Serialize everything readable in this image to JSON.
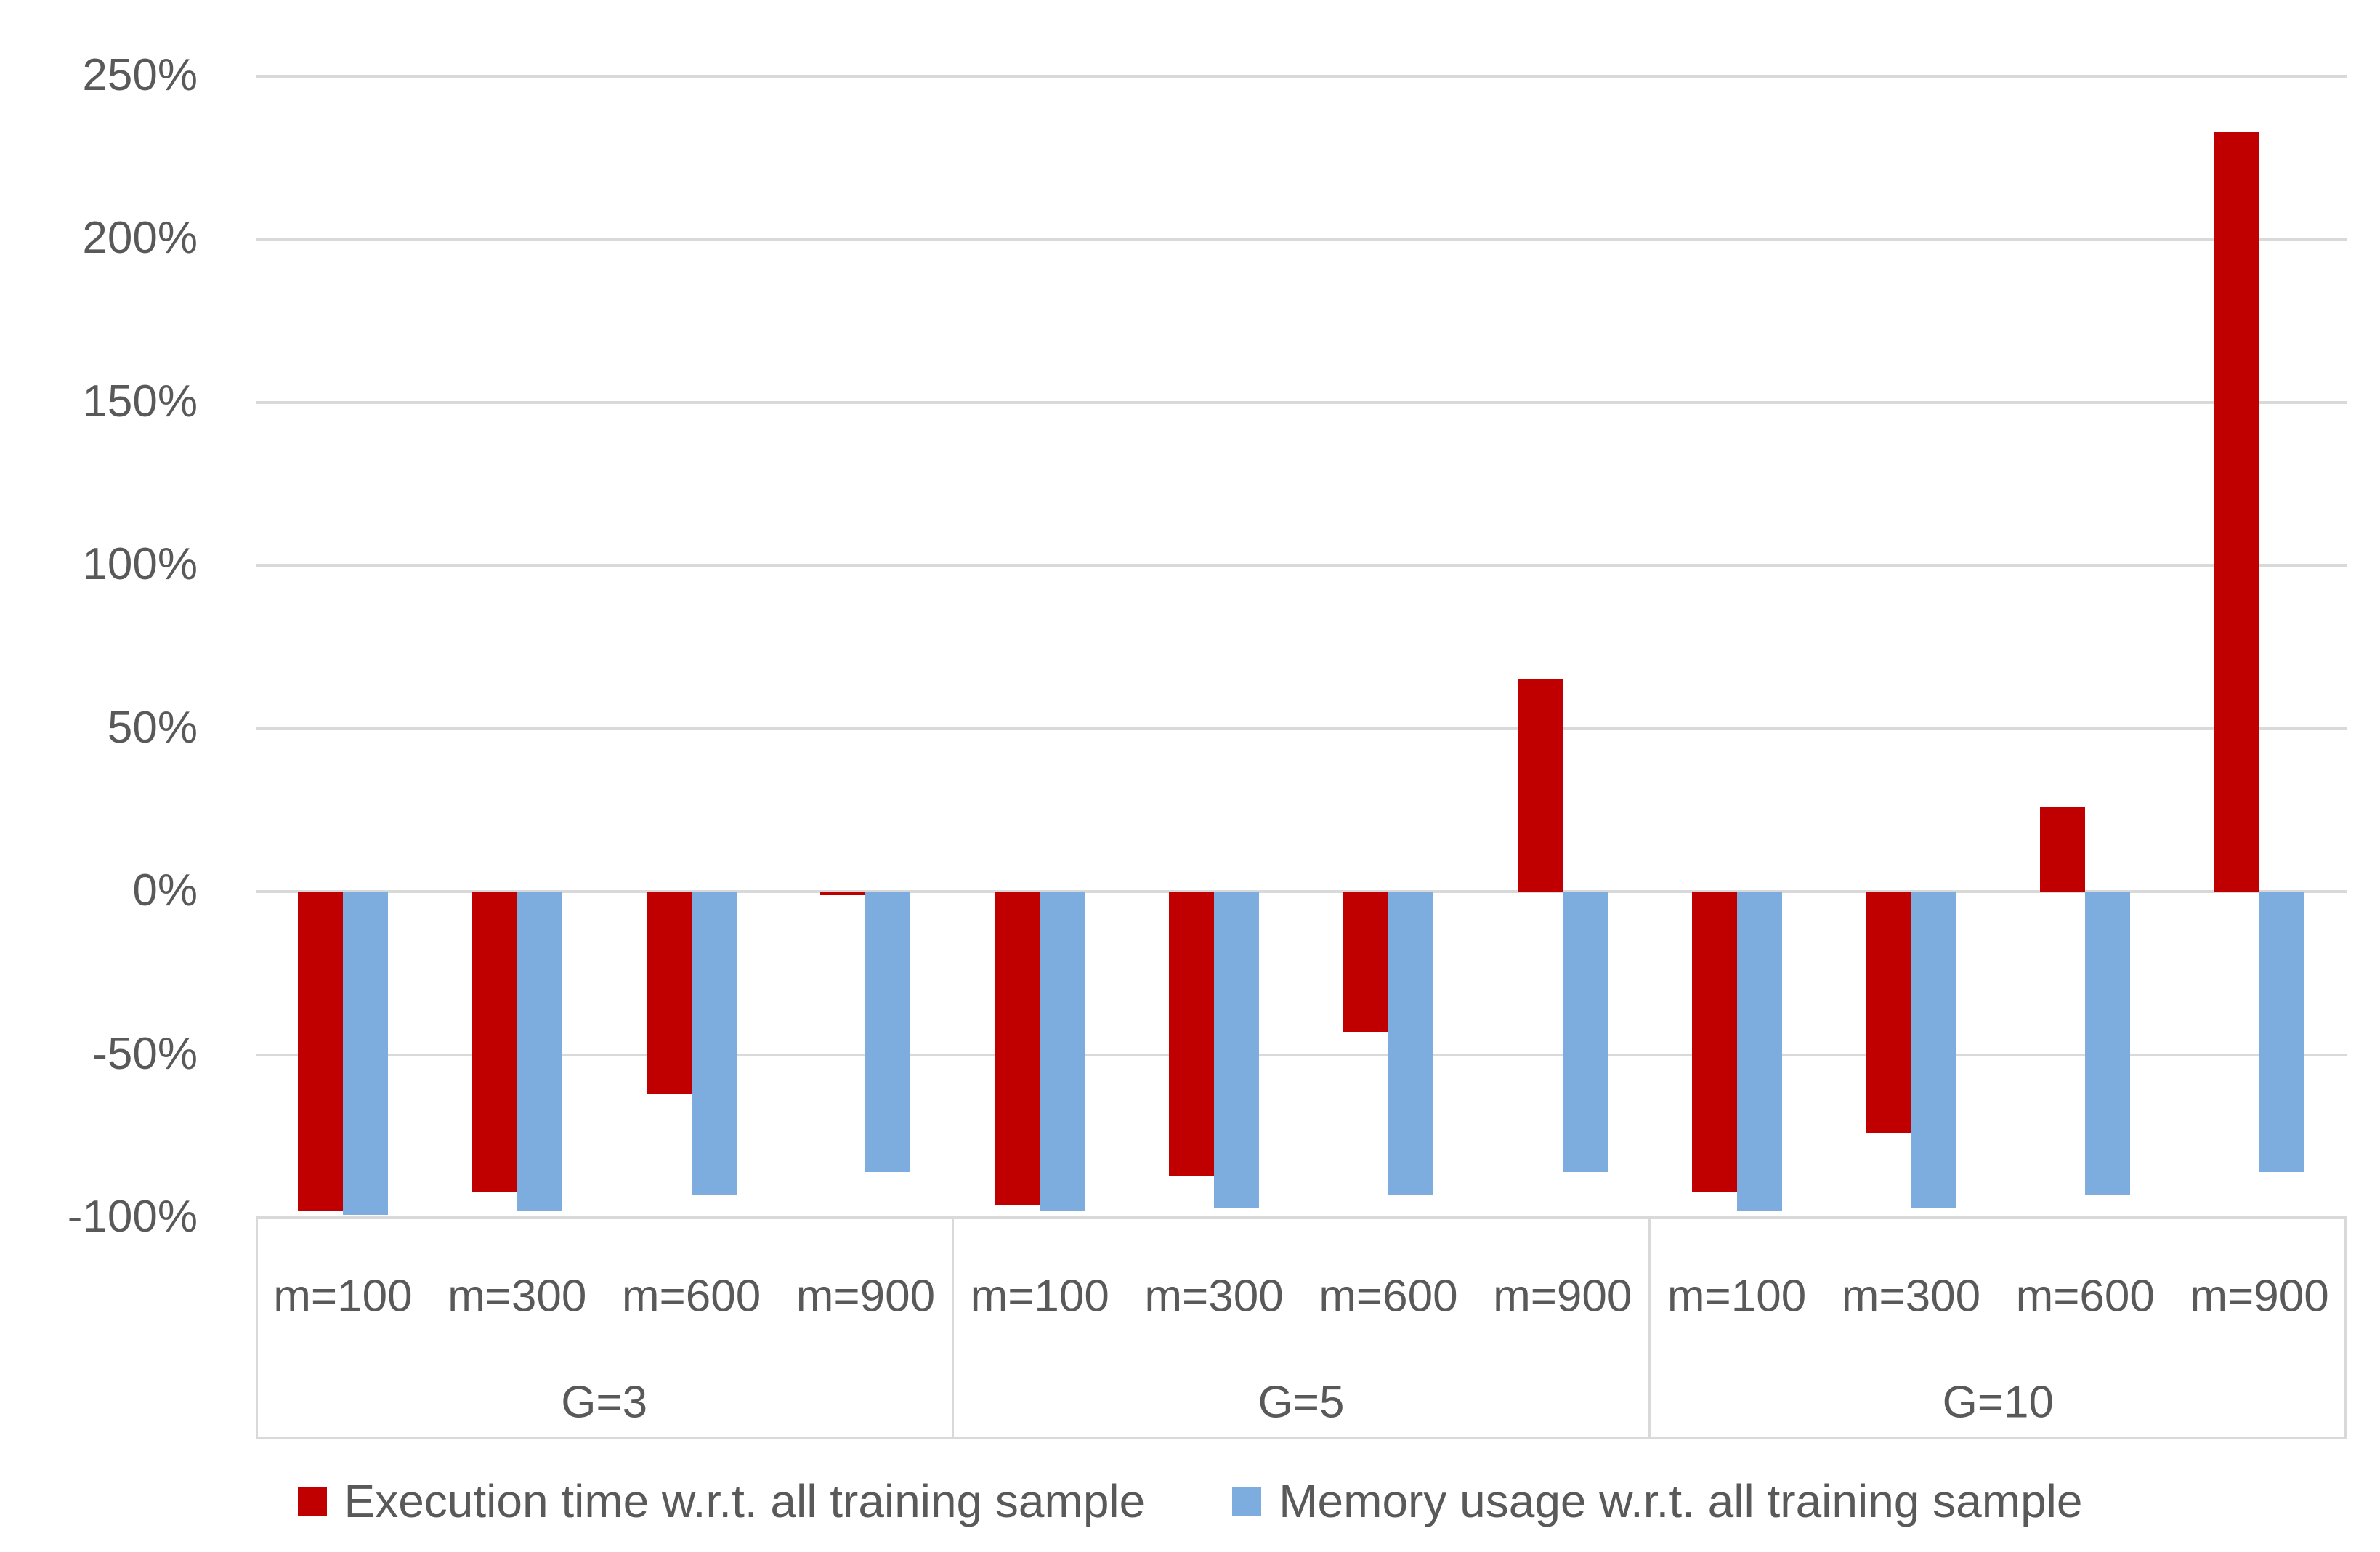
{
  "chart_data": {
    "type": "bar",
    "title": "",
    "xlabel": "",
    "ylabel": "",
    "y_axis": {
      "min": -100,
      "max": 250,
      "step": 50,
      "unit": "%",
      "grid": true,
      "tick_labels": [
        "250%",
        "200%",
        "150%",
        "100%",
        "50%",
        "0%",
        "-50%",
        "-100%"
      ]
    },
    "group_labels": [
      "G=3",
      "G=5",
      "G=10"
    ],
    "categories_per_group": [
      "m=100",
      "m=300",
      "m=600",
      "m=900"
    ],
    "series": [
      {
        "name": "Execution time w.r.t. all training sample",
        "color": "#C00000",
        "values_pct": [
          [
            -98,
            -92,
            -62,
            -1
          ],
          [
            -96,
            -87,
            -43,
            65
          ],
          [
            -92,
            -74,
            26,
            233
          ]
        ]
      },
      {
        "name": "Memory usage w.r.t. all training sample",
        "color": "#7CADDE",
        "values_pct": [
          [
            -99,
            -98,
            -93,
            -86
          ],
          [
            -98,
            -97,
            -93,
            -86
          ],
          [
            -98,
            -97,
            -93,
            -86
          ]
        ]
      }
    ],
    "legend_position": "bottom",
    "colors": {
      "grid": "#D9D9D9",
      "text": "#595959",
      "background": "#FFFFFF"
    }
  }
}
